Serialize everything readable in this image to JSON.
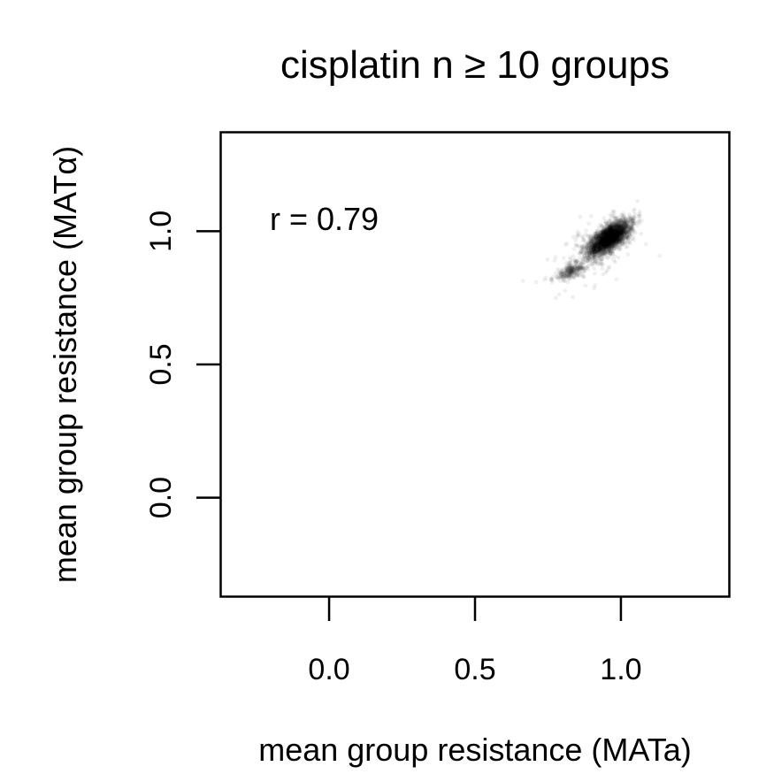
{
  "chart_data": {
    "type": "scatter",
    "title": "cisplatin n ≥ 10 groups",
    "xlabel": "mean group resistance (MATa)",
    "ylabel": "mean group resistance (MATα)",
    "xlim": [
      -0.37,
      1.37
    ],
    "ylim": [
      -0.37,
      1.37
    ],
    "x_ticks": [
      0.0,
      0.5,
      1.0
    ],
    "y_ticks": [
      0.0,
      0.5,
      1.0
    ],
    "x_tick_labels": [
      "0.0",
      "0.5",
      "1.0"
    ],
    "y_tick_labels": [
      "0.0",
      "0.5",
      "1.0"
    ],
    "annotation": "r = 0.79",
    "correlation": 0.79,
    "grid": false,
    "legend": "none",
    "point_color": "#000000",
    "point_alpha": 0.06,
    "clusters": [
      {
        "name": "main",
        "center": [
          0.96,
          0.975
        ],
        "sd_major": 0.045,
        "sd_minor": 0.02,
        "angle_deg": 40,
        "n": 2600
      },
      {
        "name": "lower",
        "center": [
          0.83,
          0.85
        ],
        "sd_major": 0.035,
        "sd_minor": 0.012,
        "angle_deg": 25,
        "n": 260
      },
      {
        "name": "sparse",
        "center": [
          0.92,
          0.93
        ],
        "sd_major": 0.09,
        "sd_minor": 0.045,
        "angle_deg": 40,
        "n": 180
      }
    ]
  }
}
